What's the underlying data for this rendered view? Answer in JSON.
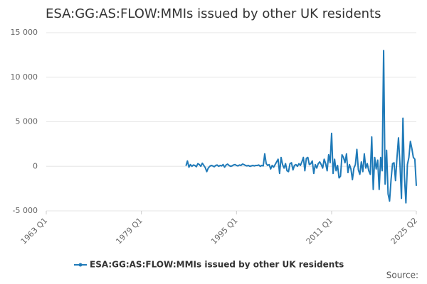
{
  "chart_data": {
    "type": "line",
    "title": "ESA:GG:AS:FLOW:MMIs issued by other UK residents",
    "source": "Source:",
    "x": [
      1986.5,
      1986.75,
      1987,
      1987.25,
      1987.5,
      1987.75,
      1988,
      1988.25,
      1988.5,
      1988.75,
      1989,
      1989.25,
      1989.5,
      1989.75,
      1990,
      1990.25,
      1990.5,
      1990.75,
      1991,
      1991.25,
      1991.5,
      1991.75,
      1992,
      1992.25,
      1992.5,
      1992.75,
      1993,
      1993.25,
      1993.5,
      1993.75,
      1994,
      1994.25,
      1994.5,
      1994.75,
      1995,
      1995.25,
      1995.5,
      1995.75,
      1996,
      1996.25,
      1996.5,
      1996.75,
      1997,
      1997.25,
      1997.5,
      1997.75,
      1998,
      1998.25,
      1998.5,
      1998.75,
      1999,
      1999.25,
      1999.5,
      1999.75,
      2000,
      2000.25,
      2000.5,
      2000.75,
      2001,
      2001.25,
      2001.5,
      2001.75,
      2002,
      2002.25,
      2002.5,
      2002.75,
      2003,
      2003.25,
      2003.5,
      2003.75,
      2004,
      2004.25,
      2004.5,
      2004.75,
      2005,
      2005.25,
      2005.5,
      2005.75,
      2006,
      2006.25,
      2006.5,
      2006.75,
      2007,
      2007.25,
      2007.5,
      2007.75,
      2008,
      2008.25,
      2008.5,
      2008.75,
      2009,
      2009.25,
      2009.5,
      2009.75,
      2010,
      2010.25,
      2010.5,
      2010.75,
      2011,
      2011.25,
      2011.5,
      2011.75,
      2012,
      2012.25,
      2012.5,
      2012.75,
      2013,
      2013.25,
      2013.5,
      2013.75,
      2014,
      2014.25,
      2014.5,
      2014.75,
      2015,
      2015.25,
      2015.5,
      2015.75,
      2016,
      2016.25,
      2016.5,
      2016.75,
      2017,
      2017.25,
      2017.5,
      2017.75,
      2018,
      2018.25,
      2018.5,
      2018.75,
      2019,
      2019.25,
      2019.5,
      2019.75,
      2020,
      2020.25,
      2020.5,
      2020.75,
      2021,
      2021.25,
      2021.5,
      2021.75,
      2022,
      2022.25,
      2022.5,
      2022.75,
      2023,
      2023.25,
      2023.5,
      2023.75,
      2024,
      2024.25,
      2024.5,
      2024.75,
      2025,
      2025.25
    ],
    "series": [
      {
        "name": "ESA:GG:AS:FLOW:MMIs issued by other UK residents",
        "color": "#1f7ab8",
        "values": [
          50,
          600,
          -100,
          200,
          0,
          150,
          100,
          -50,
          300,
          200,
          0,
          350,
          100,
          -150,
          -600,
          -200,
          0,
          100,
          50,
          -50,
          100,
          150,
          0,
          100,
          50,
          200,
          -100,
          150,
          250,
          100,
          0,
          50,
          150,
          200,
          100,
          50,
          150,
          100,
          250,
          200,
          100,
          50,
          100,
          0,
          50,
          100,
          50,
          100,
          100,
          150,
          0,
          100,
          50,
          1400,
          300,
          100,
          200,
          -300,
          100,
          -100,
          200,
          500,
          800,
          -800,
          1000,
          200,
          -200,
          300,
          -500,
          -600,
          300,
          400,
          -400,
          100,
          200,
          0,
          300,
          100,
          500,
          1000,
          -500,
          900,
          1000,
          200,
          300,
          600,
          -800,
          200,
          -200,
          300,
          500,
          200,
          -200,
          800,
          300,
          -500,
          1300,
          400,
          3700,
          -800,
          800,
          -500,
          100,
          -1300,
          -1100,
          1300,
          1000,
          400,
          1400,
          -700,
          200,
          -300,
          -1500,
          -200,
          200,
          1900,
          -400,
          -900,
          500,
          -600,
          1400,
          -200,
          300,
          -500,
          -900,
          3300,
          -2600,
          1000,
          -300,
          700,
          -2600,
          1000,
          -500,
          13000,
          -2000,
          1800,
          -3100,
          -3900,
          -1500,
          300,
          400,
          -1600,
          1000,
          3200,
          200,
          -3600,
          5400,
          -1200,
          -4100,
          200,
          1000,
          2800,
          2000,
          1000,
          800,
          -2200
        ]
      }
    ],
    "xlim": [
      1963,
      2025.25
    ],
    "xticks": [
      {
        "value": 1963,
        "label": "1963 Q1"
      },
      {
        "value": 1979,
        "label": "1979 Q1"
      },
      {
        "value": 1995,
        "label": "1995 Q1"
      },
      {
        "value": 2011,
        "label": "2011 Q1"
      },
      {
        "value": 2025.25,
        "label": "2025 Q2"
      }
    ],
    "ylim": [
      -5000,
      15000
    ],
    "yticks": [
      {
        "value": -5000,
        "label": "-5 000"
      },
      0,
      {
        "value": 5000,
        "label": "5 000"
      },
      {
        "value": 10000,
        "label": "10 000"
      },
      {
        "value": 15000,
        "label": "15 000"
      }
    ],
    "grid": true,
    "legend": "bottom"
  }
}
